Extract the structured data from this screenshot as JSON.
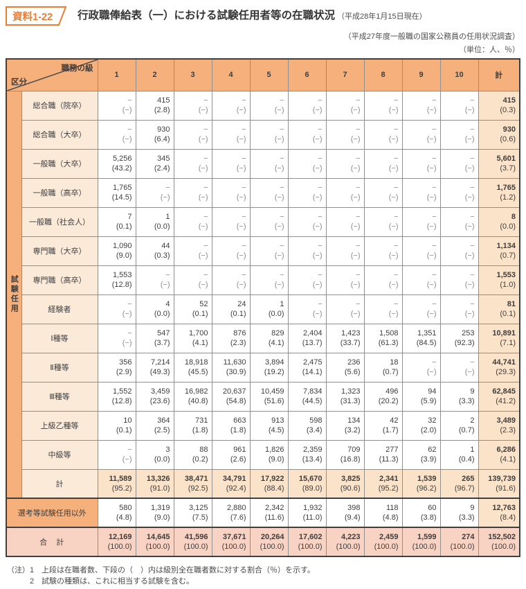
{
  "badge": "資料1-22",
  "title": "行政職俸給表（一）における試験任用者等の在職状況",
  "title_date": "（平成28年1月15日現在）",
  "subtitle": "（平成27年度一般職の国家公務員の任用状況調査）",
  "unit_note": "（単位：人、％）",
  "colors": {
    "accent_orange": "#ed7d31",
    "header_fill": "#f5b07c",
    "label_fill": "#fcead9",
    "total_fill": "#fbe3ca",
    "grand_fill": "#f8d2c2"
  },
  "table": {
    "corner": {
      "top": "職務の級",
      "bottom": "区分"
    },
    "columns": [
      "1",
      "2",
      "3",
      "4",
      "5",
      "6",
      "7",
      "8",
      "9",
      "10",
      "計"
    ],
    "group_label": "試験任用",
    "rows": [
      {
        "type": "normal",
        "label": "総合職（院卒）",
        "v": [
          "−",
          "415",
          "−",
          "−",
          "−",
          "−",
          "−",
          "−",
          "−",
          "−",
          "415"
        ],
        "p": [
          "(−)",
          "(2.8)",
          "(−)",
          "(−)",
          "(−)",
          "(−)",
          "(−)",
          "(−)",
          "(−)",
          "(−)",
          "(0.3)"
        ]
      },
      {
        "type": "normal",
        "label": "総合職（大卒）",
        "v": [
          "−",
          "930",
          "−",
          "−",
          "−",
          "−",
          "−",
          "−",
          "−",
          "−",
          "930"
        ],
        "p": [
          "(−)",
          "(6.4)",
          "(−)",
          "(−)",
          "(−)",
          "(−)",
          "(−)",
          "(−)",
          "(−)",
          "(−)",
          "(0.6)"
        ]
      },
      {
        "type": "normal",
        "label": "一般職（大卒）",
        "v": [
          "5,256",
          "345",
          "−",
          "−",
          "−",
          "−",
          "−",
          "−",
          "−",
          "−",
          "5,601"
        ],
        "p": [
          "(43.2)",
          "(2.4)",
          "(−)",
          "(−)",
          "(−)",
          "(−)",
          "(−)",
          "(−)",
          "(−)",
          "(−)",
          "(3.7)"
        ]
      },
      {
        "type": "normal",
        "label": "一般職（高卒）",
        "v": [
          "1,765",
          "−",
          "−",
          "−",
          "−",
          "−",
          "−",
          "−",
          "−",
          "−",
          "1,765"
        ],
        "p": [
          "(14.5)",
          "(−)",
          "(−)",
          "(−)",
          "(−)",
          "(−)",
          "(−)",
          "(−)",
          "(−)",
          "(−)",
          "(1.2)"
        ]
      },
      {
        "type": "normal",
        "label": "一般職（社会人）",
        "v": [
          "7",
          "1",
          "−",
          "−",
          "−",
          "−",
          "−",
          "−",
          "−",
          "−",
          "8"
        ],
        "p": [
          "(0.1)",
          "(0.0)",
          "(−)",
          "(−)",
          "(−)",
          "(−)",
          "(−)",
          "(−)",
          "(−)",
          "(−)",
          "(0.0)"
        ]
      },
      {
        "type": "normal",
        "label": "専門職（大卒）",
        "v": [
          "1,090",
          "44",
          "−",
          "−",
          "−",
          "−",
          "−",
          "−",
          "−",
          "−",
          "1,134"
        ],
        "p": [
          "(9.0)",
          "(0.3)",
          "(−)",
          "(−)",
          "(−)",
          "(−)",
          "(−)",
          "(−)",
          "(−)",
          "(−)",
          "(0.7)"
        ]
      },
      {
        "type": "normal",
        "label": "専門職（高卒）",
        "v": [
          "1,553",
          "−",
          "−",
          "−",
          "−",
          "−",
          "−",
          "−",
          "−",
          "−",
          "1,553"
        ],
        "p": [
          "(12.8)",
          "(−)",
          "(−)",
          "(−)",
          "(−)",
          "(−)",
          "(−)",
          "(−)",
          "(−)",
          "(−)",
          "(1.0)"
        ]
      },
      {
        "type": "normal",
        "label": "経験者",
        "v": [
          "−",
          "4",
          "52",
          "24",
          "1",
          "−",
          "−",
          "−",
          "−",
          "−",
          "81"
        ],
        "p": [
          "(−)",
          "(0.0)",
          "(0.1)",
          "(0.1)",
          "(0.0)",
          "(−)",
          "(−)",
          "(−)",
          "(−)",
          "(−)",
          "(0.1)"
        ]
      },
      {
        "type": "normal",
        "label": "Ⅰ種等",
        "v": [
          "−",
          "547",
          "1,700",
          "876",
          "829",
          "2,404",
          "1,423",
          "1,508",
          "1,351",
          "253",
          "10,891"
        ],
        "p": [
          "(−)",
          "(3.7)",
          "(4.1)",
          "(2.3)",
          "(4.1)",
          "(13.7)",
          "(33.7)",
          "(61.3)",
          "(84.5)",
          "(92.3)",
          "(7.1)"
        ]
      },
      {
        "type": "normal",
        "label": "Ⅱ種等",
        "v": [
          "356",
          "7,214",
          "18,918",
          "11,630",
          "3,894",
          "2,475",
          "236",
          "18",
          "−",
          "−",
          "44,741"
        ],
        "p": [
          "(2.9)",
          "(49.3)",
          "(45.5)",
          "(30.9)",
          "(19.2)",
          "(14.1)",
          "(5.6)",
          "(0.7)",
          "(−)",
          "(−)",
          "(29.3)"
        ]
      },
      {
        "type": "normal",
        "label": "Ⅲ種等",
        "v": [
          "1,552",
          "3,459",
          "16,982",
          "20,637",
          "10,459",
          "7,834",
          "1,323",
          "496",
          "94",
          "9",
          "62,845"
        ],
        "p": [
          "(12.8)",
          "(23.6)",
          "(40.8)",
          "(54.8)",
          "(51.6)",
          "(44.5)",
          "(31.3)",
          "(20.2)",
          "(5.9)",
          "(3.3)",
          "(41.2)"
        ]
      },
      {
        "type": "normal",
        "label": "上級乙種等",
        "v": [
          "10",
          "364",
          "731",
          "663",
          "913",
          "598",
          "134",
          "42",
          "32",
          "2",
          "3,489"
        ],
        "p": [
          "(0.1)",
          "(2.5)",
          "(1.8)",
          "(1.8)",
          "(4.5)",
          "(3.4)",
          "(3.2)",
          "(1.7)",
          "(2.0)",
          "(0.7)",
          "(2.3)"
        ]
      },
      {
        "type": "normal",
        "label": "中級等",
        "v": [
          "−",
          "3",
          "88",
          "961",
          "1,826",
          "2,359",
          "709",
          "277",
          "62",
          "1",
          "6,286"
        ],
        "p": [
          "(−)",
          "(0.0)",
          "(0.2)",
          "(2.6)",
          "(9.0)",
          "(13.4)",
          "(16.8)",
          "(11.3)",
          "(3.9)",
          "(0.4)",
          "(4.1)"
        ]
      },
      {
        "type": "subtotal",
        "label": "計",
        "v": [
          "11,589",
          "13,326",
          "38,471",
          "34,791",
          "17,922",
          "15,670",
          "3,825",
          "2,341",
          "1,539",
          "265",
          "139,739"
        ],
        "p": [
          "(95.2)",
          "(91.0)",
          "(92.5)",
          "(92.4)",
          "(88.4)",
          "(89.0)",
          "(90.6)",
          "(95.2)",
          "(96.2)",
          "(96.7)",
          "(91.6)"
        ]
      },
      {
        "type": "outside",
        "label": "選考等試験任用以外",
        "v": [
          "580",
          "1,319",
          "3,125",
          "2,880",
          "2,342",
          "1,932",
          "398",
          "118",
          "60",
          "9",
          "12,763"
        ],
        "p": [
          "(4.8)",
          "(9.0)",
          "(7.5)",
          "(7.6)",
          "(11.6)",
          "(11.0)",
          "(9.4)",
          "(4.8)",
          "(3.8)",
          "(3.3)",
          "(8.4)"
        ]
      },
      {
        "type": "grand",
        "label": "合　計",
        "v": [
          "12,169",
          "14,645",
          "41,596",
          "37,671",
          "20,264",
          "17,602",
          "4,223",
          "2,459",
          "1,599",
          "274",
          "152,502"
        ],
        "p": [
          "(100.0)",
          "(100.0)",
          "(100.0)",
          "(100.0)",
          "(100.0)",
          "(100.0)",
          "(100.0)",
          "(100.0)",
          "(100.0)",
          "(100.0)",
          "(100.0)"
        ]
      }
    ]
  },
  "notes": [
    {
      "prefix": "（注）",
      "num": "1",
      "text": "上段は在職者数、下段の（　）内は級別全在職者数に対する割合（％）を示す。"
    },
    {
      "prefix": "",
      "num": "2",
      "text": "試験の種類は、これに相当する試験を含む。"
    }
  ]
}
